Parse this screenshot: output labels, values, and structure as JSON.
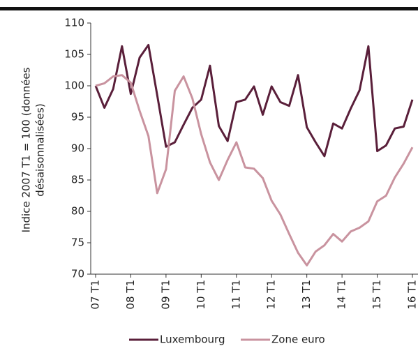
{
  "chart_data": {
    "type": "line",
    "y_label": [
      "Indice 2007 T1 = 100 (données",
      "désaisonnalisées)"
    ],
    "categories": [
      "07 T1",
      null,
      null,
      null,
      "08 T1",
      null,
      null,
      null,
      "09 T1",
      null,
      null,
      null,
      "10 T1",
      null,
      null,
      null,
      "11 T1",
      null,
      null,
      null,
      "12 T1",
      null,
      null,
      null,
      "13 T1",
      null,
      null,
      null,
      "14 T1",
      null,
      null,
      null,
      "15 T1",
      null,
      null,
      null,
      "16 T1"
    ],
    "series": [
      {
        "name": "Luxembourg",
        "color": "#5a1f3a",
        "values": [
          100,
          96.5,
          99.5,
          106.3,
          98.7,
          104.5,
          106.5,
          98.5,
          90.3,
          91,
          93.8,
          96.5,
          97.8,
          103.2,
          93.6,
          91.2,
          97.4,
          97.8,
          99.9,
          95.4,
          99.9,
          97.4,
          96.8,
          101.7,
          93.4,
          91,
          88.8,
          94,
          93.2,
          96.4,
          99.3,
          106.3,
          89.6,
          90.5,
          93.2,
          93.5,
          97.8
        ]
      },
      {
        "name": "Zone euro",
        "color": "#c9939f",
        "values": [
          100,
          100.4,
          101.5,
          101.7,
          100.5,
          96,
          92,
          82.9,
          86.7,
          99.2,
          101.5,
          98,
          92.3,
          87.8,
          85,
          88.2,
          91,
          87,
          86.8,
          85.3,
          81.7,
          79.5,
          76.4,
          73.4,
          71.4,
          73.6,
          74.6,
          76.4,
          75.2,
          76.8,
          77.4,
          78.4,
          81.6,
          82.5,
          85.4,
          87.6,
          90.2
        ]
      }
    ],
    "ylim": [
      70,
      110
    ],
    "yticks": [
      70,
      75,
      80,
      85,
      90,
      95,
      100,
      105,
      110
    ],
    "grid": false
  }
}
